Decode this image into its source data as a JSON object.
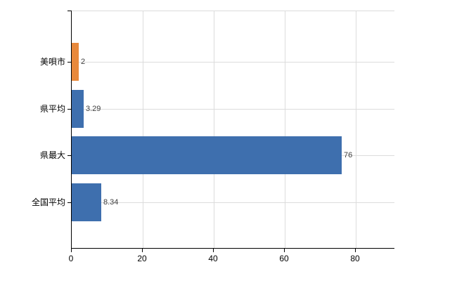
{
  "chart_data": {
    "type": "bar",
    "orientation": "horizontal",
    "title": "",
    "xlabel": "",
    "ylabel": "",
    "categories": [
      "美唄市",
      "県平均",
      "県最大",
      "全国平均"
    ],
    "values": [
      2,
      3.29,
      76,
      8.34
    ],
    "value_labels": [
      "2",
      "3.29",
      "76",
      "8.34"
    ],
    "bar_colors": [
      "#e8893c",
      "#3e6fae",
      "#3e6fae",
      "#3e6fae"
    ],
    "x_ticks": [
      0,
      20,
      40,
      60,
      80
    ],
    "x_tick_labels": [
      "0",
      "20",
      "40",
      "60",
      "80"
    ],
    "xlim": [
      0,
      91
    ],
    "grid": true,
    "legend": false
  },
  "colors": {
    "highlight_bar": "#e8893c",
    "default_bar": "#3e6fae",
    "gridline": "#dcdcdc",
    "axis": "#000000",
    "value_label": "#404040",
    "tick_label": "#000000"
  }
}
